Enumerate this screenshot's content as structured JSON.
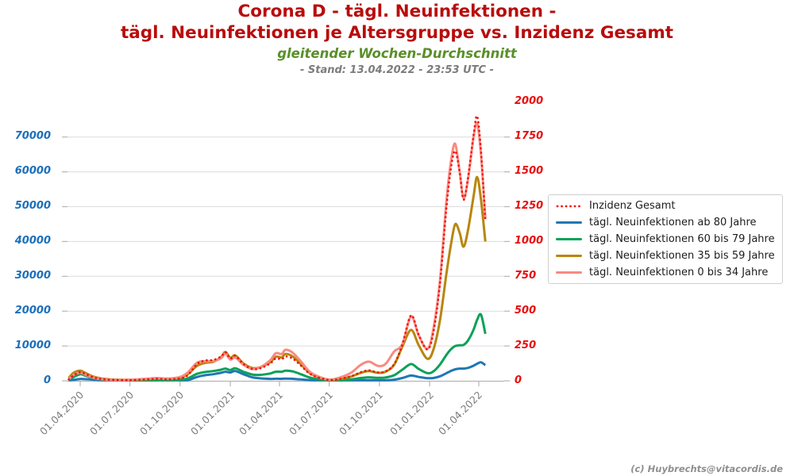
{
  "header": {
    "title_line1": "Corona D - tägl. Neuinfektionen -",
    "title_line2": "tägl. Neuinfektionen je Altersgruppe vs. Inzidenz Gesamt",
    "subtitle": "gleitender Wochen-Durchschnitt",
    "stand": "- Stand: 13.04.2022 - 23:53 UTC -"
  },
  "footer": {
    "copyright": "(c) Huybrechts@vitacordis.de"
  },
  "colors": {
    "title": "#b90c0c",
    "subtitle_green": "#5a8f29",
    "stand_gray": "#7c7c7c",
    "left_axis_blue": "#1b6fba",
    "right_axis_red": "#ea0b0b",
    "gridline": "#dcdcdc",
    "spine": "#b5b5b5",
    "legend_border": "#cfcfcf"
  },
  "chart_data": {
    "type": "line",
    "title": "Corona D - tägl. Neuinfektionen je Altersgruppe vs. Inzidenz Gesamt",
    "subtitle": "gleitender Wochen-Durchschnitt",
    "grid": "horizontal-only",
    "legend_position": "upper right",
    "x_axis": {
      "ticks": [
        "01.04.2020",
        "01.07.2020",
        "01.10.2020",
        "01.01.2021",
        "01.04.2021",
        "01.07.2021",
        "01.10.2021",
        "01.01.2022",
        "01.04.2022"
      ],
      "range": [
        "11.03.2020",
        "13.04.2022"
      ]
    },
    "left_axis": {
      "label_values": [
        0,
        10000,
        20000,
        30000,
        40000,
        50000,
        60000,
        70000
      ],
      "ylim": [
        0,
        80000
      ],
      "color": "#1b6fba",
      "unit": "tägl. Neuinfektionen"
    },
    "right_axis": {
      "label_values": [
        0,
        250,
        500,
        750,
        1000,
        1250,
        1500,
        1750,
        2000
      ],
      "ylim": [
        0,
        2000
      ],
      "color": "#ea0b0b",
      "unit": "Inzidenz"
    },
    "x": [
      "2020-03-11",
      "2020-03-20",
      "2020-04-01",
      "2020-04-10",
      "2020-04-25",
      "2020-05-10",
      "2020-06-01",
      "2020-07-01",
      "2020-08-01",
      "2020-08-20",
      "2020-09-10",
      "2020-10-01",
      "2020-10-15",
      "2020-11-01",
      "2020-11-15",
      "2020-12-01",
      "2020-12-15",
      "2020-12-23",
      "2021-01-01",
      "2021-01-10",
      "2021-01-25",
      "2021-02-10",
      "2021-02-25",
      "2021-03-15",
      "2021-03-25",
      "2021-04-05",
      "2021-04-12",
      "2021-04-25",
      "2021-05-10",
      "2021-05-25",
      "2021-06-10",
      "2021-07-01",
      "2021-07-20",
      "2021-08-10",
      "2021-08-28",
      "2021-09-12",
      "2021-09-28",
      "2021-10-12",
      "2021-10-28",
      "2021-11-12",
      "2021-11-28",
      "2021-12-12",
      "2021-12-28",
      "2022-01-08",
      "2022-01-20",
      "2022-02-01",
      "2022-02-10",
      "2022-02-17",
      "2022-02-25",
      "2022-03-04",
      "2022-03-12",
      "2022-03-22",
      "2022-03-29",
      "2022-04-05",
      "2022-04-13"
    ],
    "series": [
      {
        "name": "Inzidenz Gesamt",
        "axis": "right",
        "style": "dotted",
        "color": "#f2100c",
        "values": [
          10,
          40,
          62,
          50,
          25,
          12,
          6,
          5,
          10,
          14,
          11,
          18,
          40,
          120,
          145,
          150,
          175,
          205,
          160,
          180,
          120,
          85,
          90,
          125,
          160,
          155,
          175,
          160,
          110,
          55,
          25,
          6,
          13,
          32,
          62,
          75,
          60,
          68,
          120,
          260,
          470,
          330,
          225,
          350,
          700,
          1250,
          1550,
          1650,
          1500,
          1300,
          1450,
          1750,
          1900,
          1650,
          1150
        ]
      },
      {
        "name": "tägl. Neuinfektionen ab 80 Jahre",
        "axis": "left",
        "style": "solid",
        "color": "#1f77b4",
        "values": [
          80,
          280,
          520,
          480,
          330,
          180,
          70,
          35,
          40,
          50,
          55,
          90,
          200,
          1100,
          1600,
          1900,
          2300,
          2600,
          2400,
          2800,
          1900,
          1000,
          700,
          550,
          600,
          580,
          620,
          570,
          400,
          220,
          100,
          30,
          35,
          70,
          130,
          160,
          150,
          180,
          330,
          800,
          1500,
          1100,
          750,
          800,
          1300,
          2200,
          2900,
          3300,
          3500,
          3500,
          3700,
          4300,
          4900,
          5300,
          4500
        ]
      },
      {
        "name": "tägl. Neuinfektionen 60 bis 79 Jahre",
        "axis": "left",
        "style": "solid",
        "color": "#0ba158",
        "values": [
          350,
          1100,
          1900,
          1500,
          800,
          400,
          180,
          120,
          160,
          200,
          200,
          320,
          700,
          2000,
          2500,
          2800,
          3200,
          3500,
          3100,
          3600,
          2600,
          1800,
          1700,
          2100,
          2600,
          2600,
          2900,
          2700,
          1900,
          1000,
          450,
          110,
          170,
          420,
          800,
          1000,
          850,
          950,
          1600,
          3200,
          4800,
          3400,
          2200,
          2700,
          4700,
          7500,
          9200,
          10000,
          10200,
          10300,
          11500,
          14500,
          17500,
          19000,
          13500
        ]
      },
      {
        "name": "tägl. Neuinfektionen 35 bis 59 Jahre",
        "axis": "left",
        "style": "solid",
        "color": "#b8860b",
        "values": [
          800,
          2300,
          2900,
          2300,
          1200,
          650,
          350,
          300,
          450,
          600,
          550,
          900,
          1900,
          4300,
          5100,
          5500,
          6800,
          8300,
          6600,
          7300,
          5000,
          3700,
          3900,
          5300,
          6900,
          6700,
          7700,
          7000,
          4800,
          2400,
          1100,
          280,
          500,
          1200,
          2300,
          2800,
          2300,
          2600,
          4600,
          9800,
          14600,
          10200,
          6300,
          9000,
          17500,
          31000,
          40000,
          45000,
          42500,
          38500,
          43000,
          52500,
          58500,
          52000,
          40000
        ]
      },
      {
        "name": "tägl. Neuinfektionen 0 bis 34 Jahre",
        "axis": "left",
        "style": "solid",
        "color": "#f98a80",
        "values": [
          400,
          1700,
          2300,
          1800,
          900,
          450,
          250,
          280,
          600,
          800,
          650,
          1100,
          2400,
          5200,
          5600,
          5700,
          6500,
          7800,
          6100,
          6700,
          4600,
          3400,
          3900,
          5900,
          7900,
          7700,
          8900,
          8100,
          5600,
          2800,
          1300,
          350,
          900,
          2300,
          4600,
          5500,
          4300,
          4800,
          8400,
          10500,
          18500,
          13000,
          9200,
          15000,
          29000,
          52000,
          64000,
          68000,
          60000,
          52500,
          57500,
          69500,
          74000,
          65000,
          46500
        ]
      }
    ]
  }
}
